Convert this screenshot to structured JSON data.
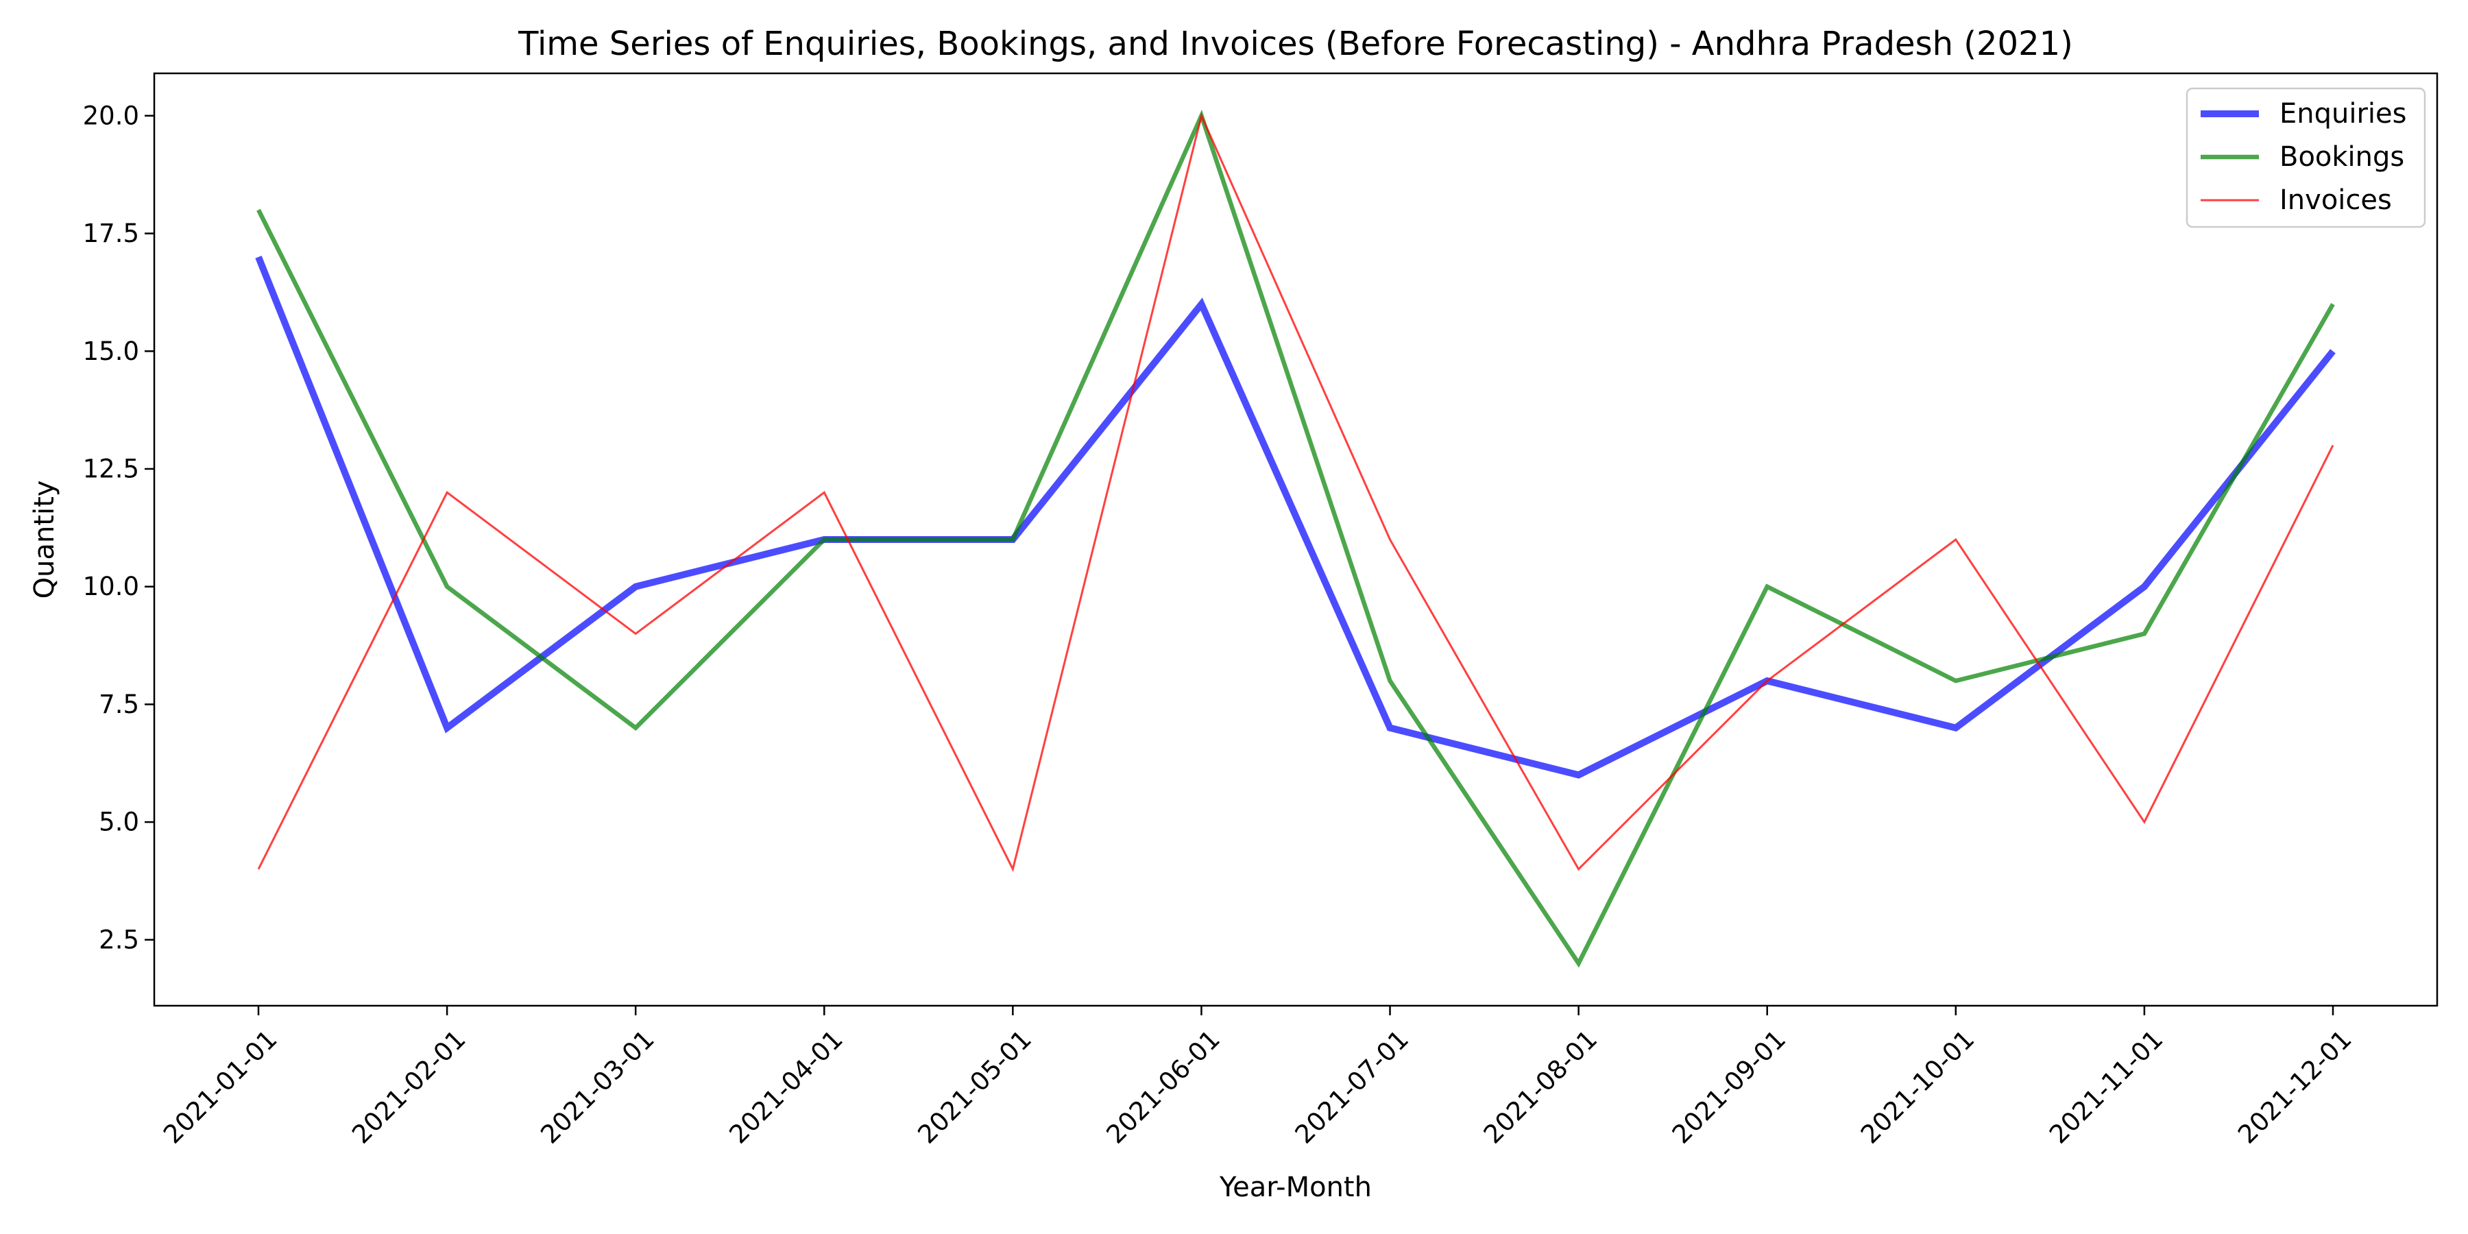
{
  "chart_data": {
    "type": "line",
    "title": "Time Series of Enquiries, Bookings, and Invoices (Before Forecasting) - Andhra Pradesh (2021)",
    "xlabel": "Year-Month",
    "ylabel": "Quantity",
    "x": [
      "2021-01-01",
      "2021-02-01",
      "2021-03-01",
      "2021-04-01",
      "2021-05-01",
      "2021-06-01",
      "2021-07-01",
      "2021-08-01",
      "2021-09-01",
      "2021-10-01",
      "2021-11-01",
      "2021-12-01"
    ],
    "yticks": [
      "2.5",
      "5.0",
      "7.5",
      "10.0",
      "12.5",
      "15.0",
      "17.5",
      "20.0"
    ],
    "ylim": [
      1.1,
      20.9
    ],
    "grid": false,
    "legend_position": "upper right",
    "series": [
      {
        "name": "Enquiries",
        "color": "#0000ff",
        "values": [
          17,
          7,
          10,
          11,
          11,
          16,
          7,
          6,
          8,
          7,
          10,
          15
        ]
      },
      {
        "name": "Bookings",
        "color": "#008000",
        "values": [
          18,
          10,
          7,
          11,
          11,
          20,
          8,
          2,
          10,
          8,
          9,
          16
        ]
      },
      {
        "name": "Invoices",
        "color": "#ff0000",
        "values": [
          4,
          12,
          9,
          12,
          4,
          20,
          11,
          4,
          8,
          11,
          5,
          13
        ]
      }
    ]
  }
}
